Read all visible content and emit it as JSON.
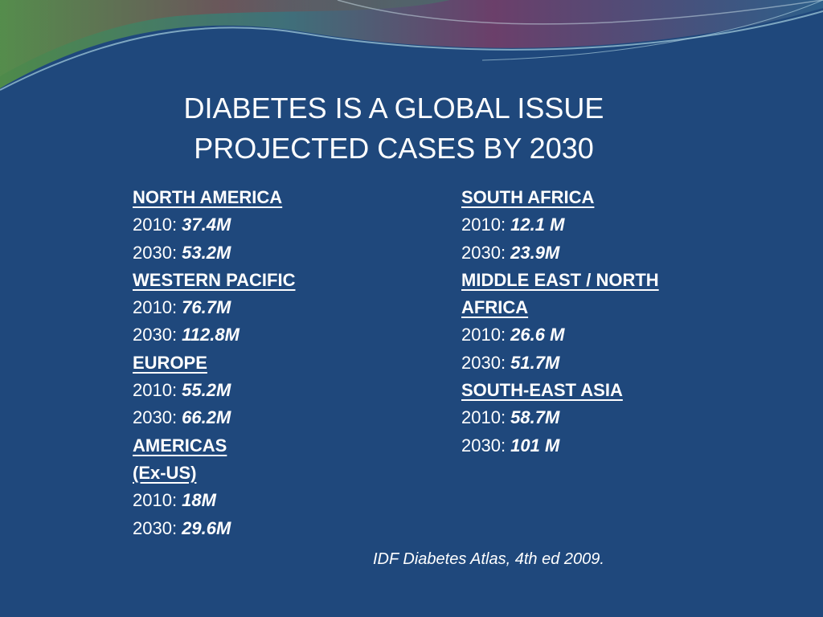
{
  "title": {
    "line1": "DIABETES IS A GLOBAL ISSUE",
    "line2": "PROJECTED CASES BY 2030"
  },
  "left_regions": [
    {
      "name_lines": [
        "NORTH AMERICA"
      ],
      "y2010_label": "2010: ",
      "y2010_value": "37.4M",
      "y2030_label": "2030: ",
      "y2030_value": "53.2M"
    },
    {
      "name_lines": [
        "WESTERN PACIFIC"
      ],
      "y2010_label": "2010: ",
      "y2010_value": "76.7M",
      "y2030_label": "2030: ",
      "y2030_value": "112.8M"
    },
    {
      "name_lines": [
        "EUROPE"
      ],
      "y2010_label": "2010: ",
      "y2010_value": "55.2M",
      "y2030_label": "2030: ",
      "y2030_value": "66.2M"
    },
    {
      "name_lines": [
        "AMERICAS",
        "(Ex-US)"
      ],
      "y2010_label": "2010: ",
      "y2010_value": "18M",
      "y2030_label": "2030: ",
      "y2030_value": "29.6M"
    }
  ],
  "right_regions": [
    {
      "name_lines": [
        "SOUTH AFRICA"
      ],
      "y2010_label": "2010: ",
      "y2010_value": "12.1 M",
      "y2030_label": "2030: ",
      "y2030_value": "23.9M"
    },
    {
      "name_lines": [
        "MIDDLE EAST / NORTH",
        "AFRICA"
      ],
      "y2010_label": "2010: ",
      "y2010_value": "26.6 M",
      "y2030_label": "2030: ",
      "y2030_value": "51.7M"
    },
    {
      "name_lines": [
        "SOUTH-EAST ASIA"
      ],
      "y2010_label": "2010: ",
      "y2010_value": "58.7M",
      "y2030_label": "2030: ",
      "y2030_value": "101 M"
    }
  ],
  "source": "IDF Diabetes Atlas, 4th ed 2009.",
  "colors": {
    "background": "#1f487c",
    "text": "#ffffff"
  }
}
